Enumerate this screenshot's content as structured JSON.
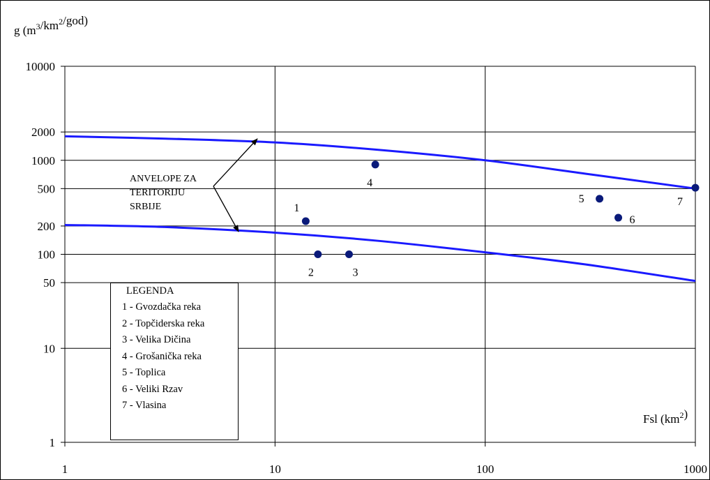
{
  "chart_data": {
    "type": "scatter",
    "ylabel": "g (m³/km²/god)",
    "xlabel": "Fsl (km²)",
    "xscale": "log",
    "yscale": "log",
    "xlim": [
      1,
      1000
    ],
    "ylim": [
      1,
      10000
    ],
    "x_ticks": [
      "1",
      "10",
      "100",
      "1000"
    ],
    "y_ticks": [
      {
        "value": 10000,
        "label": "10000"
      },
      {
        "value": 2000,
        "label": "2000"
      },
      {
        "value": 1000,
        "label": "1000"
      },
      {
        "value": 500,
        "label": "500"
      },
      {
        "value": 200,
        "label": "200"
      },
      {
        "value": 100,
        "label": "100"
      },
      {
        "value": 50,
        "label": "50"
      },
      {
        "value": 10,
        "label": "10"
      },
      {
        "value": 1,
        "label": "1"
      }
    ],
    "grid": true,
    "points": [
      {
        "label": "1",
        "x": 14,
        "y": 225
      },
      {
        "label": "2",
        "x": 16,
        "y": 100
      },
      {
        "label": "3",
        "x": 22.5,
        "y": 100
      },
      {
        "label": "4",
        "x": 30,
        "y": 900
      },
      {
        "label": "5",
        "x": 350,
        "y": 390
      },
      {
        "label": "6",
        "x": 430,
        "y": 245
      },
      {
        "label": "7",
        "x": 1000,
        "y": 510
      }
    ],
    "envelopes": [
      {
        "x": [
          1,
          3,
          10,
          30,
          100,
          300,
          1000
        ],
        "y": [
          1800,
          1700,
          1550,
          1300,
          1000,
          720,
          500
        ]
      },
      {
        "x": [
          1,
          3,
          10,
          30,
          100,
          300,
          1000
        ],
        "y": [
          205,
          195,
          170,
          140,
          105,
          78,
          52
        ]
      }
    ],
    "annotation": [
      "ANVELOPE ZA",
      "TERITORIJU",
      "SRBIJE"
    ],
    "legend": {
      "title": "LEGENDA",
      "entries": [
        "1 - Gvozdačka reka",
        "2 - Topčiderska reka",
        "3 - Velika Dičina",
        "4 - Grošanička reka",
        "5 - Toplica",
        "6 - Veliki Rzav",
        "7 - Vlasina"
      ]
    },
    "colors": {
      "curve": "#1a1aff",
      "point": "#0a1a7a",
      "grid": "#000000"
    }
  }
}
